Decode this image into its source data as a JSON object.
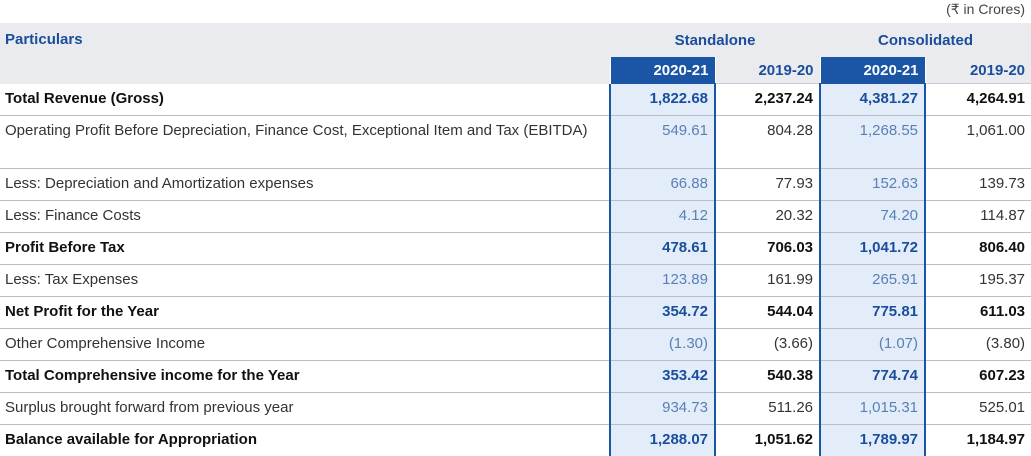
{
  "unit_note": "(₹ in Crores)",
  "header": {
    "particulars": "Particulars",
    "standalone": "Standalone",
    "consolidated": "Consolidated",
    "years": [
      "2020-21",
      "2019-20",
      "2020-21",
      "2019-20"
    ]
  },
  "rows": [
    {
      "label": "Total Revenue (Gross)",
      "values": [
        "1,822.68",
        "2,237.24",
        "4,381.27",
        "4,264.91"
      ]
    },
    {
      "label": "Operating Profit Before Depreciation, Finance Cost, Exceptional Item and Tax (EBITDA)",
      "values": [
        "549.61",
        "804.28",
        "1,268.55",
        "1,061.00"
      ]
    },
    {
      "label": "Less: Depreciation and Amortization expenses",
      "values": [
        "66.88",
        "77.93",
        "152.63",
        "139.73"
      ]
    },
    {
      "label": "Less: Finance Costs",
      "values": [
        "4.12",
        "20.32",
        "74.20",
        "114.87"
      ]
    },
    {
      "label": "Profit Before Tax",
      "values": [
        "478.61",
        "706.03",
        "1,041.72",
        "806.40"
      ]
    },
    {
      "label": "Less: Tax Expenses",
      "values": [
        "123.89",
        "161.99",
        "265.91",
        "195.37"
      ]
    },
    {
      "label": "Net Profit for the Year",
      "values": [
        "354.72",
        "544.04",
        "775.81",
        "611.03"
      ]
    },
    {
      "label": "Other Comprehensive Income",
      "values": [
        "(1.30)",
        "(3.66)",
        "(1.07)",
        "(3.80)"
      ]
    },
    {
      "label": "Total Comprehensive income for the Year",
      "values": [
        "353.42",
        "540.38",
        "774.74",
        "607.23"
      ]
    },
    {
      "label": "Surplus brought forward from previous year",
      "values": [
        "934.73",
        "511.26",
        "1,015.31",
        "525.01"
      ]
    },
    {
      "label": "Balance available for Appropriation",
      "values": [
        "1,288.07",
        "1,051.62",
        "1,789.97",
        "1,184.97"
      ]
    }
  ]
}
